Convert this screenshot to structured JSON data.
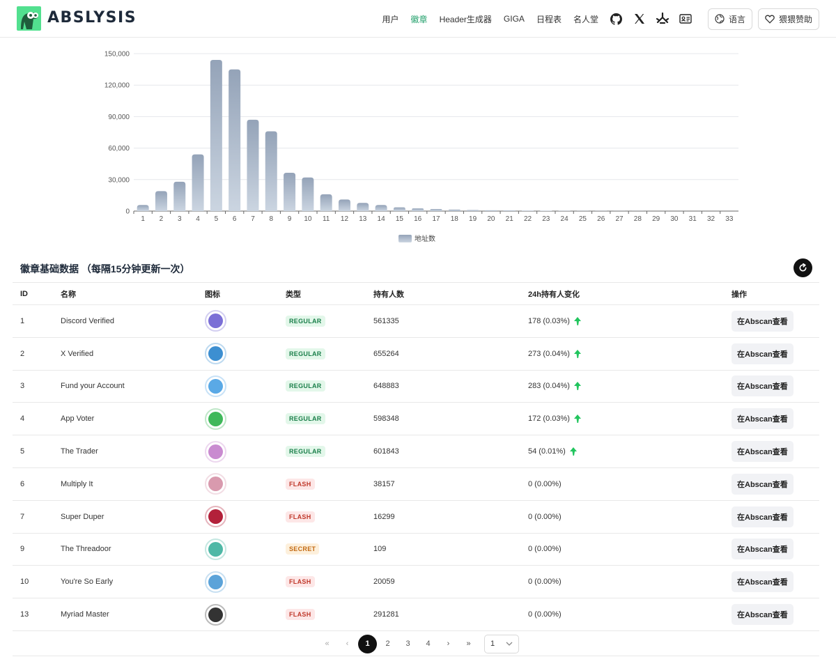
{
  "brand": {
    "name": "ABSLYSIS"
  },
  "nav": {
    "items": [
      "用户",
      "徽章",
      "Header生成器",
      "GIGA",
      "日程表",
      "名人堂"
    ],
    "active_index": 1,
    "language_label": "语言",
    "sponsor_label": "猥猥赞助"
  },
  "colors": {
    "accent": "#22a06b",
    "bar_top": "#94a3b8",
    "bar_bottom": "#cbd5e1"
  },
  "chart_data": {
    "type": "bar",
    "categories": [
      "1",
      "2",
      "3",
      "4",
      "5",
      "6",
      "7",
      "8",
      "9",
      "10",
      "11",
      "12",
      "13",
      "14",
      "15",
      "16",
      "17",
      "18",
      "19",
      "20",
      "21",
      "22",
      "23",
      "24",
      "25",
      "26",
      "27",
      "28",
      "29",
      "30",
      "31",
      "32",
      "33"
    ],
    "series": [
      {
        "name": "地址数",
        "values": [
          5800,
          19000,
          28000,
          54000,
          144000,
          135000,
          87000,
          76000,
          36500,
          32000,
          16000,
          11000,
          7800,
          5800,
          3600,
          2600,
          1900,
          1400,
          1000,
          750,
          550,
          420,
          320,
          250,
          180,
          130,
          90,
          60,
          40,
          25,
          15,
          10,
          5
        ]
      }
    ],
    "yticks": [
      "0",
      "30,000",
      "60,000",
      "90,000",
      "120,000",
      "150,000"
    ],
    "ylim": [
      0,
      150000
    ],
    "legend": "地址数",
    "legend_position": "bottom"
  },
  "section": {
    "title": "徽章基础数据 （每隔15分钟更新一次）"
  },
  "table": {
    "headers": {
      "id": "ID",
      "name": "名称",
      "icon": "图标",
      "type": "类型",
      "holders": "持有人数",
      "change": "24h持有人变化",
      "op": "操作"
    },
    "rows": [
      {
        "id": "1",
        "name": "Discord Verified",
        "type": "REGULAR",
        "holders": "561335",
        "change": "178 (0.03%)",
        "up": true,
        "icon_color": "#7b6fd6",
        "op": "在Abscan查看"
      },
      {
        "id": "2",
        "name": "X Verified",
        "type": "REGULAR",
        "holders": "655264",
        "change": "273 (0.04%)",
        "up": true,
        "icon_color": "#3d8fd1",
        "op": "在Abscan查看"
      },
      {
        "id": "3",
        "name": "Fund your Account",
        "type": "REGULAR",
        "holders": "648883",
        "change": "283 (0.04%)",
        "up": true,
        "icon_color": "#5aa9e6",
        "op": "在Abscan查看"
      },
      {
        "id": "4",
        "name": "App Voter",
        "type": "REGULAR",
        "holders": "598348",
        "change": "172 (0.03%)",
        "up": true,
        "icon_color": "#3fb85a",
        "op": "在Abscan查看"
      },
      {
        "id": "5",
        "name": "The Trader",
        "type": "REGULAR",
        "holders": "601843",
        "change": "54 (0.01%)",
        "up": true,
        "icon_color": "#c98bd0",
        "op": "在Abscan查看"
      },
      {
        "id": "6",
        "name": "Multiply It",
        "type": "FLASH",
        "holders": "38157",
        "change": "0 (0.00%)",
        "up": false,
        "icon_color": "#d99aae",
        "op": "在Abscan查看"
      },
      {
        "id": "7",
        "name": "Super Duper",
        "type": "FLASH",
        "holders": "16299",
        "change": "0 (0.00%)",
        "up": false,
        "icon_color": "#b3213a",
        "op": "在Abscan查看"
      },
      {
        "id": "9",
        "name": "The Threadoor",
        "type": "SECRET",
        "holders": "109",
        "change": "0 (0.00%)",
        "up": false,
        "icon_color": "#4fb8a6",
        "op": "在Abscan查看"
      },
      {
        "id": "10",
        "name": "You're So Early",
        "type": "FLASH",
        "holders": "20059",
        "change": "0 (0.00%)",
        "up": false,
        "icon_color": "#5ba3d9",
        "op": "在Abscan查看"
      },
      {
        "id": "13",
        "name": "Myriad Master",
        "type": "FLASH",
        "holders": "291281",
        "change": "0 (0.00%)",
        "up": false,
        "icon_color": "#333333",
        "op": "在Abscan查看"
      }
    ]
  },
  "pager": {
    "first": "«",
    "prev": "‹",
    "next": "›",
    "last": "»",
    "pages": [
      "1",
      "2",
      "3",
      "4"
    ],
    "current": "1",
    "select_value": "1"
  }
}
